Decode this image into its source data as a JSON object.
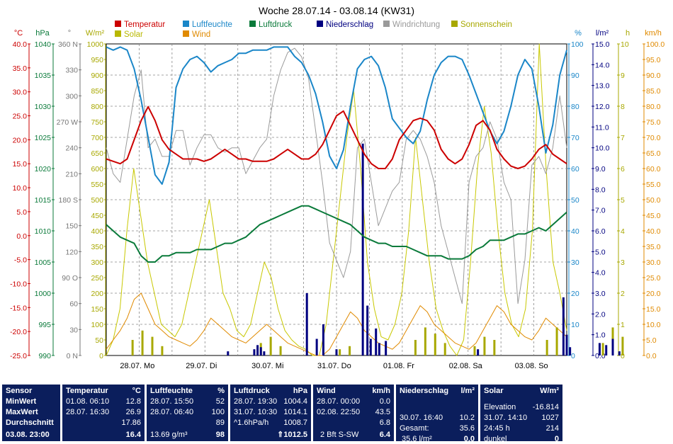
{
  "chart_data": {
    "type": "line",
    "title": "Woche 28.07.14 - 03.08.14 (KW31)",
    "legend": [
      {
        "name": "Temperatur",
        "color": "#cc0000"
      },
      {
        "name": "Luftfeuchte",
        "color": "#1a86c8"
      },
      {
        "name": "Luftdruck",
        "color": "#0a7a3a"
      },
      {
        "name": "Niederschlag",
        "color": "#000080"
      },
      {
        "name": "Windrichtung",
        "color": "#9a9a9a"
      },
      {
        "name": "Sonnenschein",
        "color": "#a8a800"
      },
      {
        "name": "Solar",
        "color": "#b8b800"
      },
      {
        "name": "Wind",
        "color": "#e08a00"
      }
    ],
    "left_axes": [
      {
        "unit": "°C",
        "color": "#cc0000",
        "ticks": [
          "40.0",
          "35.0",
          "30.0",
          "25.0",
          "20.0",
          "15.0",
          "10.0",
          "5.0",
          "0.0",
          "-5.0",
          "-10.0",
          "-15.0",
          "-20.0",
          "-25.0"
        ]
      },
      {
        "unit": "hPa",
        "color": "#0a7a3a",
        "ticks": [
          "1040",
          "1035",
          "1030",
          "1025",
          "1020",
          "1015",
          "1010",
          "1005",
          "1000",
          "995",
          "990"
        ]
      },
      {
        "unit": "°",
        "color": "#777777",
        "ticks": [
          "360 N",
          "330",
          "300",
          "270 W",
          "240",
          "210",
          "180 S",
          "150",
          "120",
          "90 O",
          "60",
          "30",
          "0 N"
        ]
      },
      {
        "unit": "W/m²",
        "color": "#a8a800",
        "ticks": [
          "1000",
          "950",
          "900",
          "850",
          "800",
          "750",
          "700",
          "650",
          "600",
          "550",
          "500",
          "450",
          "400",
          "350",
          "300",
          "250",
          "200",
          "150",
          "100",
          "50",
          "0"
        ]
      }
    ],
    "right_axes": [
      {
        "unit": "%",
        "color": "#1a86c8",
        "ticks": [
          "100",
          "90",
          "80",
          "70",
          "60",
          "50",
          "40",
          "30",
          "20",
          "10",
          "0"
        ]
      },
      {
        "unit": "l/m²",
        "color": "#000080",
        "ticks": [
          "15.0",
          "14.0",
          "13.0",
          "12.0",
          "11.0",
          "10.0",
          "9.0",
          "8.0",
          "7.0",
          "6.0",
          "5.0",
          "4.0",
          "3.0",
          "2.0",
          "1.0",
          "0.0"
        ]
      },
      {
        "unit": "h",
        "color": "#a8a800",
        "ticks": [
          "10",
          "9",
          "8",
          "7",
          "6",
          "5",
          "4",
          "3",
          "2",
          "1",
          "0"
        ]
      },
      {
        "unit": "km/h",
        "color": "#e08a00",
        "ticks": [
          "100.0",
          "95.0",
          "90.0",
          "85.0",
          "80.0",
          "75.0",
          "70.0",
          "65.0",
          "60.0",
          "55.0",
          "50.0",
          "45.0",
          "40.0",
          "35.0",
          "30.0",
          "25.0",
          "20.0",
          "15.0",
          "10.0",
          "5.0",
          "0.0"
        ]
      }
    ],
    "x_labels": [
      "28.07. Mo",
      "29.07. Di",
      "30.07. Mi",
      "31.07. Do",
      "01.08. Fr",
      "02.08. Sa",
      "03.08. So"
    ],
    "temperature": [
      16,
      15.5,
      15,
      16,
      20,
      24,
      26.9,
      24,
      20,
      18,
      17,
      16,
      16,
      16,
      15.5,
      16,
      17,
      18,
      17,
      16,
      16,
      15.5,
      15.5,
      15.5,
      16,
      17,
      18,
      17,
      16,
      16,
      17,
      19,
      22,
      25,
      26,
      23,
      20,
      17,
      15,
      14,
      14,
      16,
      20,
      22,
      24,
      24.5,
      24,
      22,
      18,
      16,
      15,
      16,
      19,
      23,
      24,
      22,
      18,
      16,
      14.5,
      14,
      14.5,
      16,
      18,
      19,
      17,
      16,
      15
    ],
    "humidity": [
      99,
      98,
      99,
      98,
      92,
      82,
      70,
      58,
      55,
      62,
      86,
      92,
      95,
      96,
      94,
      91,
      93,
      94,
      95,
      97,
      97,
      98,
      98,
      98,
      99,
      99,
      99,
      96,
      94,
      90,
      84,
      75,
      64,
      60,
      66,
      80,
      92,
      95,
      96,
      93,
      86,
      76,
      73,
      70,
      68,
      72,
      82,
      90,
      94,
      96,
      96,
      95,
      90,
      84,
      78,
      72,
      68,
      72,
      80,
      90,
      95,
      92,
      80,
      65,
      74,
      90,
      98
    ],
    "pressure": [
      1011,
      1010,
      1009,
      1008.5,
      1008,
      1006,
      1005,
      1005,
      1006,
      1006,
      1006.5,
      1006.5,
      1006.5,
      1007,
      1007,
      1007,
      1007.5,
      1008,
      1008,
      1008.5,
      1009,
      1010,
      1011,
      1011.5,
      1012,
      1012.5,
      1013,
      1013.5,
      1014,
      1014,
      1013.5,
      1013,
      1012.5,
      1012,
      1011.5,
      1011,
      1010,
      1009,
      1008.5,
      1008,
      1008,
      1007.5,
      1007.5,
      1007.5,
      1007,
      1006.5,
      1006,
      1006,
      1006,
      1005.5,
      1005.5,
      1005.5,
      1006,
      1007,
      1007.5,
      1008.5,
      1008.5,
      1008.5,
      1009,
      1009.5,
      1009.5,
      1010,
      1010.5,
      1010,
      1011,
      1012,
      1013
    ],
    "precipitation": [
      {
        "x": 1.85,
        "v": 0.2
      },
      {
        "x": 2.25,
        "v": 0.3
      },
      {
        "x": 2.3,
        "v": 0.5
      },
      {
        "x": 2.35,
        "v": 0.4
      },
      {
        "x": 2.4,
        "v": 0.2
      },
      {
        "x": 3.05,
        "v": 3
      },
      {
        "x": 3.2,
        "v": 0.8
      },
      {
        "x": 3.3,
        "v": 1.5
      },
      {
        "x": 3.5,
        "v": 0.3
      },
      {
        "x": 3.9,
        "v": 10.2
      },
      {
        "x": 3.97,
        "v": 2.4
      },
      {
        "x": 4.02,
        "v": 0.8
      },
      {
        "x": 4.1,
        "v": 1.3
      },
      {
        "x": 4.15,
        "v": 0.6
      },
      {
        "x": 4.25,
        "v": 0.7
      },
      {
        "x": 5.65,
        "v": 0.3
      },
      {
        "x": 6.95,
        "v": 2.8
      },
      {
        "x": 7.0,
        "v": 1.0
      },
      {
        "x": 7.05,
        "v": 0.4
      },
      {
        "x": 7.5,
        "v": 0.6
      },
      {
        "x": 7.6,
        "v": 0.5
      },
      {
        "x": 7.7,
        "v": 0.8
      },
      {
        "x": 7.8,
        "v": 0.2
      }
    ],
    "wind_direction": [
      240,
      210,
      200,
      250,
      300,
      330,
      240,
      250,
      230,
      230,
      260,
      260,
      220,
      240,
      255,
      255,
      240,
      235,
      240,
      240,
      210,
      225,
      240,
      250,
      300,
      330,
      350,
      355,
      345,
      320,
      260,
      200,
      130,
      110,
      90,
      120,
      240,
      250,
      200,
      150,
      170,
      190,
      200,
      250,
      260,
      250,
      230,
      200,
      150,
      120,
      90,
      60,
      200,
      230,
      240,
      270,
      250,
      200,
      180,
      60,
      110,
      220,
      230,
      210,
      240,
      300,
      240
    ],
    "sunshine": [
      {
        "x": 0.4,
        "v": 0.5
      },
      {
        "x": 0.55,
        "v": 0.8
      },
      {
        "x": 0.7,
        "v": 0.6
      },
      {
        "x": 0.85,
        "v": 0.3
      },
      {
        "x": 2.35,
        "v": 0.4
      },
      {
        "x": 2.5,
        "v": 0.6
      },
      {
        "x": 2.65,
        "v": 0.3
      },
      {
        "x": 3.55,
        "v": 0.2
      },
      {
        "x": 3.7,
        "v": 0.3
      },
      {
        "x": 4.7,
        "v": 0.5
      },
      {
        "x": 4.85,
        "v": 0.9
      },
      {
        "x": 5.0,
        "v": 0.7
      },
      {
        "x": 5.15,
        "v": 0.4
      },
      {
        "x": 5.6,
        "v": 0.3
      },
      {
        "x": 5.75,
        "v": 0.6
      },
      {
        "x": 5.9,
        "v": 0.5
      },
      {
        "x": 6.7,
        "v": 0.5
      },
      {
        "x": 6.85,
        "v": 0.9
      },
      {
        "x": 7.0,
        "v": 0.6
      },
      {
        "x": 7.55,
        "v": 0.4
      },
      {
        "x": 7.7,
        "v": 0.9
      },
      {
        "x": 7.85,
        "v": 0.6
      }
    ],
    "solar": [
      0,
      50,
      150,
      400,
      600,
      450,
      300,
      200,
      100,
      80,
      60,
      100,
      200,
      300,
      400,
      500,
      350,
      200,
      150,
      80,
      60,
      100,
      200,
      300,
      250,
      150,
      80,
      50,
      30,
      20,
      0,
      0,
      100,
      300,
      500,
      700,
      850,
      600,
      300,
      150,
      60,
      50,
      100,
      200,
      400,
      700,
      500,
      300,
      150,
      80,
      30,
      0,
      50,
      300,
      600,
      800,
      650,
      400,
      200,
      100,
      60,
      150,
      400,
      1000,
      600,
      300,
      200,
      80
    ],
    "wind_speed": [
      2,
      5,
      8,
      12,
      18,
      20,
      15,
      10,
      8,
      6,
      5,
      4,
      3,
      5,
      8,
      12,
      10,
      8,
      6,
      5,
      4,
      6,
      8,
      10,
      8,
      6,
      4,
      3,
      2,
      1,
      0,
      0,
      2,
      6,
      10,
      14,
      12,
      8,
      6,
      4,
      3,
      2,
      4,
      8,
      12,
      16,
      14,
      10,
      8,
      6,
      4,
      3,
      2,
      4,
      8,
      12,
      16,
      14,
      10,
      8,
      6,
      5,
      8,
      12,
      10,
      8,
      6
    ]
  },
  "stats": {
    "sensor": {
      "header": "Sensor",
      "min": "MinWert",
      "max": "MaxWert",
      "avg": "Durchschnitt",
      "date": "03.08. 23:00"
    },
    "temperature": {
      "header": "Temperatur",
      "unit": "°C",
      "min_time": "01.08. 06:10",
      "min_val": "12.8",
      "max_time": "28.07. 16:30",
      "max_val": "26.9",
      "avg": "17.86",
      "current": "16.4"
    },
    "humidity": {
      "header": "Luftfeuchte",
      "unit": "%",
      "min_time": "28.07. 15:50",
      "min_val": "52",
      "max_time": "28.07. 06:40",
      "max_val": "100",
      "avg": "89",
      "abs": "13.69 g/m³",
      "current": "98"
    },
    "pressure": {
      "header": "Luftdruck",
      "unit": "hPa",
      "min_time": "28.07. 19:30",
      "min_val": "1004.4",
      "max_time": "31.07. 10:30",
      "max_val": "1014.1",
      "trend": "^1.6hPa/h",
      "avg": "1008.7",
      "current": "1012.5"
    },
    "wind": {
      "header": "Wind",
      "unit": "km/h",
      "min_time": "28.07. 00:00",
      "min_val": "0.0",
      "max_time": "02.08. 22:50",
      "max_val": "43.5",
      "avg": "6.8",
      "bft": "2 Bft S-SW",
      "current": "6.4"
    },
    "rain": {
      "header": "Niederschlag",
      "unit": "l/m²",
      "max_time": "30.07. 16:40",
      "max_val": "10.2",
      "total_label": "Gesamt:",
      "total": "35.6",
      "day": "35.6 l/m²",
      "current": "0.0"
    },
    "solar": {
      "header": "Solar",
      "unit": "W/m²",
      "elev_label": "Elevation",
      "elev": "-16.814",
      "max_time": "31.07. 14:10",
      "max_val": "1027",
      "sun_time": "24:45 h",
      "sun_val": "214",
      "state": "dunkel",
      "current": "0"
    }
  }
}
